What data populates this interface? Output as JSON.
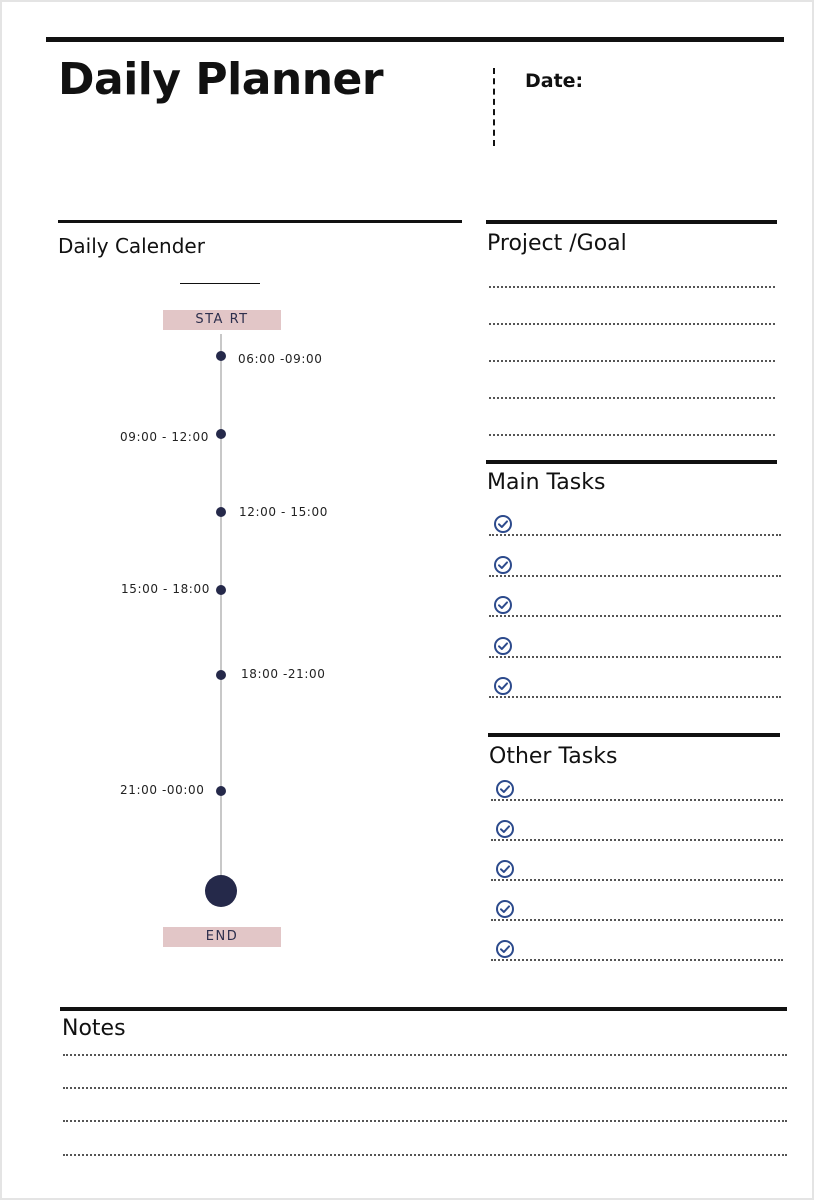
{
  "header": {
    "title": "Daily Planner",
    "date_label": "Date:"
  },
  "calendar": {
    "heading": "Daily Calender",
    "start_label": "STA RT",
    "end_label": "END",
    "slots": [
      "06:00 -09:00",
      "09:00 - 12:00",
      "12:00 - 15:00",
      "15:00 - 18:00",
      "18:00 -21:00",
      "21:00 -00:00"
    ]
  },
  "project": {
    "heading": "Project /Goal",
    "line_count": 5
  },
  "main_tasks": {
    "heading": "Main Tasks",
    "item_count": 5,
    "check_icon": "check-circle-icon"
  },
  "other_tasks": {
    "heading": "Other Tasks",
    "item_count": 5,
    "check_icon": "check-circle-icon"
  },
  "notes": {
    "heading": "Notes",
    "line_count": 4
  },
  "colors": {
    "accent_navy": "#25294a",
    "tag_pink": "#e2c6c7",
    "check_blue": "#2c4a8c"
  }
}
